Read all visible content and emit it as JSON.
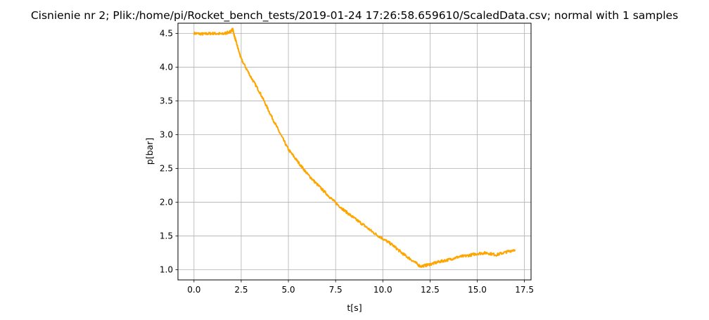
{
  "chart_data": {
    "type": "line",
    "title": "Cisnienie nr 2; Plik:/home/pi/Rocket_bench_tests/2019-01-24 17:26:58.659610/ScaledData.csv; normal with 1 samples",
    "xlabel": "t[s]",
    "ylabel": "p[bar]",
    "xlim": [
      -0.85,
      17.85
    ],
    "ylim": [
      0.85,
      4.65
    ],
    "xticks": [
      "0.0",
      "2.5",
      "5.0",
      "7.5",
      "10.0",
      "12.5",
      "15.0",
      "17.5"
    ],
    "yticks": [
      "1.0",
      "1.5",
      "2.0",
      "2.5",
      "3.0",
      "3.5",
      "4.0",
      "4.5"
    ],
    "grid": true,
    "line_color": "#ffa500",
    "series": [
      {
        "x": [
          0.0,
          0.5,
          1.0,
          1.5,
          1.9,
          2.05,
          2.2,
          2.5,
          3.0,
          3.5,
          4.0,
          4.5,
          5.0,
          5.5,
          6.0,
          6.5,
          7.0,
          7.5,
          8.0,
          8.5,
          9.0,
          9.5,
          10.0,
          10.5,
          11.0,
          11.5,
          12.0,
          12.5,
          13.0,
          13.5,
          14.0,
          14.5,
          15.0,
          15.5,
          16.0,
          16.5,
          17.0
        ],
        "y": [
          4.5,
          4.49,
          4.5,
          4.49,
          4.52,
          4.56,
          4.4,
          4.12,
          3.86,
          3.62,
          3.33,
          3.05,
          2.78,
          2.6,
          2.42,
          2.27,
          2.13,
          1.99,
          1.87,
          1.76,
          1.66,
          1.55,
          1.46,
          1.37,
          1.25,
          1.15,
          1.05,
          1.08,
          1.12,
          1.15,
          1.19,
          1.21,
          1.24,
          1.25,
          1.22,
          1.26,
          1.3
        ]
      }
    ]
  }
}
